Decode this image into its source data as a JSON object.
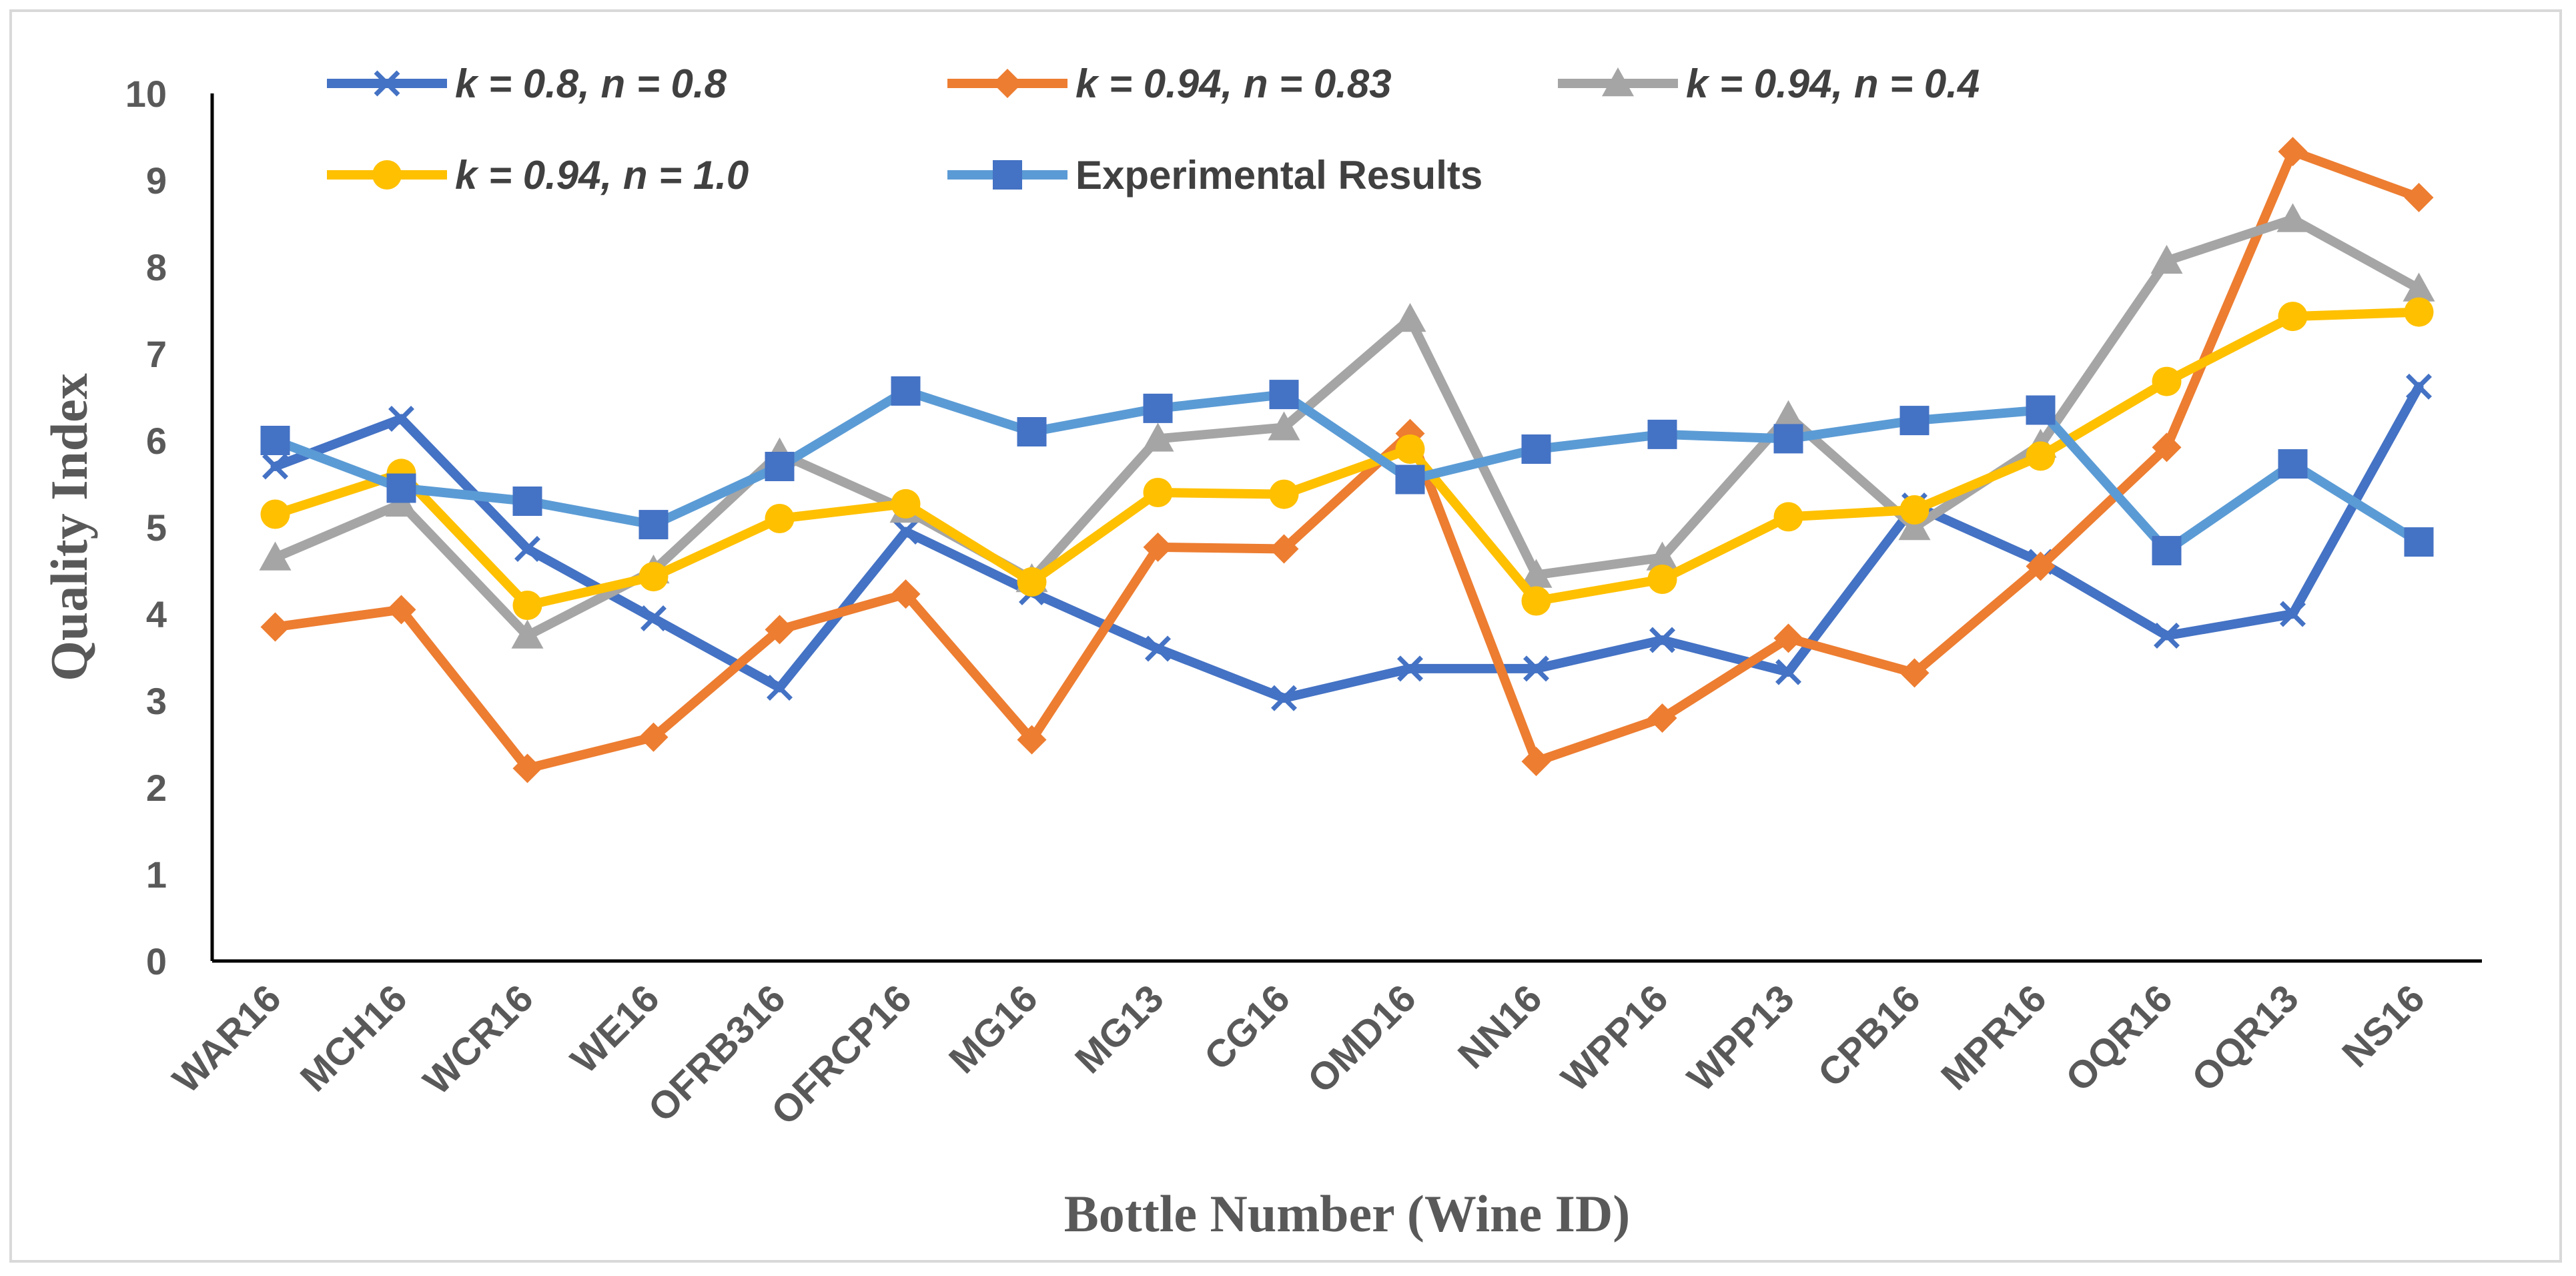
{
  "chart_data": {
    "type": "line",
    "title": "",
    "xlabel": "Bottle Number (Wine ID)",
    "ylabel": "Quality Index",
    "ylim": [
      0,
      10
    ],
    "yticks": [
      "0",
      "1",
      "2",
      "3",
      "4",
      "5",
      "6",
      "7",
      "8",
      "9",
      "10"
    ],
    "grid": false,
    "legend_position": "top",
    "categories": [
      "WAR16",
      "MCH16",
      "WCR16",
      "WE16",
      "OFRB316",
      "OFRCP16",
      "MG16",
      "MG13",
      "CG16",
      "OMD16",
      "NN16",
      "WPP16",
      "WPP13",
      "CPB16",
      "MPR16",
      "OQR16",
      "OQR13",
      "NS16"
    ],
    "series": [
      {
        "name": "k = 0.8, n = 0.8",
        "color": "#4472c4",
        "marker": "x",
        "italic": true,
        "values": [
          5.7,
          6.25,
          4.75,
          3.95,
          3.15,
          4.95,
          4.25,
          3.6,
          3.03,
          3.37,
          3.37,
          3.7,
          3.33,
          5.25,
          4.6,
          3.75,
          4.0,
          6.62
        ]
      },
      {
        "name": "k = 0.94, n = 0.83",
        "color": "#ed7d31",
        "marker": "diamond",
        "italic": true,
        "values": [
          3.85,
          4.05,
          2.22,
          2.58,
          3.82,
          4.23,
          2.55,
          4.77,
          4.75,
          6.08,
          2.3,
          2.8,
          3.72,
          3.32,
          4.55,
          5.92,
          9.33,
          8.8
        ]
      },
      {
        "name": "k = 0.94, n = 0.4",
        "color": "#a5a5a5",
        "marker": "triangle",
        "italic": true,
        "values": [
          4.65,
          5.27,
          3.75,
          4.5,
          5.85,
          5.2,
          4.4,
          6.02,
          6.15,
          7.4,
          4.45,
          4.65,
          6.28,
          5.0,
          5.95,
          8.07,
          8.55,
          7.75
        ]
      },
      {
        "name": "k = 0.94, n = 1.0",
        "color": "#ffc000",
        "marker": "circle",
        "italic": true,
        "values": [
          5.15,
          5.62,
          4.1,
          4.43,
          5.1,
          5.27,
          4.37,
          5.4,
          5.38,
          5.9,
          4.15,
          4.4,
          5.12,
          5.2,
          5.82,
          6.68,
          7.43,
          7.48
        ]
      },
      {
        "name": "Experimental Results",
        "color": "#5b9bd5",
        "marker": "square",
        "marker_color": "#4472c4",
        "italic": false,
        "values": [
          6.0,
          5.45,
          5.3,
          5.03,
          5.7,
          6.57,
          6.1,
          6.37,
          6.53,
          5.55,
          5.9,
          6.07,
          6.02,
          6.23,
          6.35,
          4.73,
          5.73,
          4.83
        ]
      }
    ]
  }
}
